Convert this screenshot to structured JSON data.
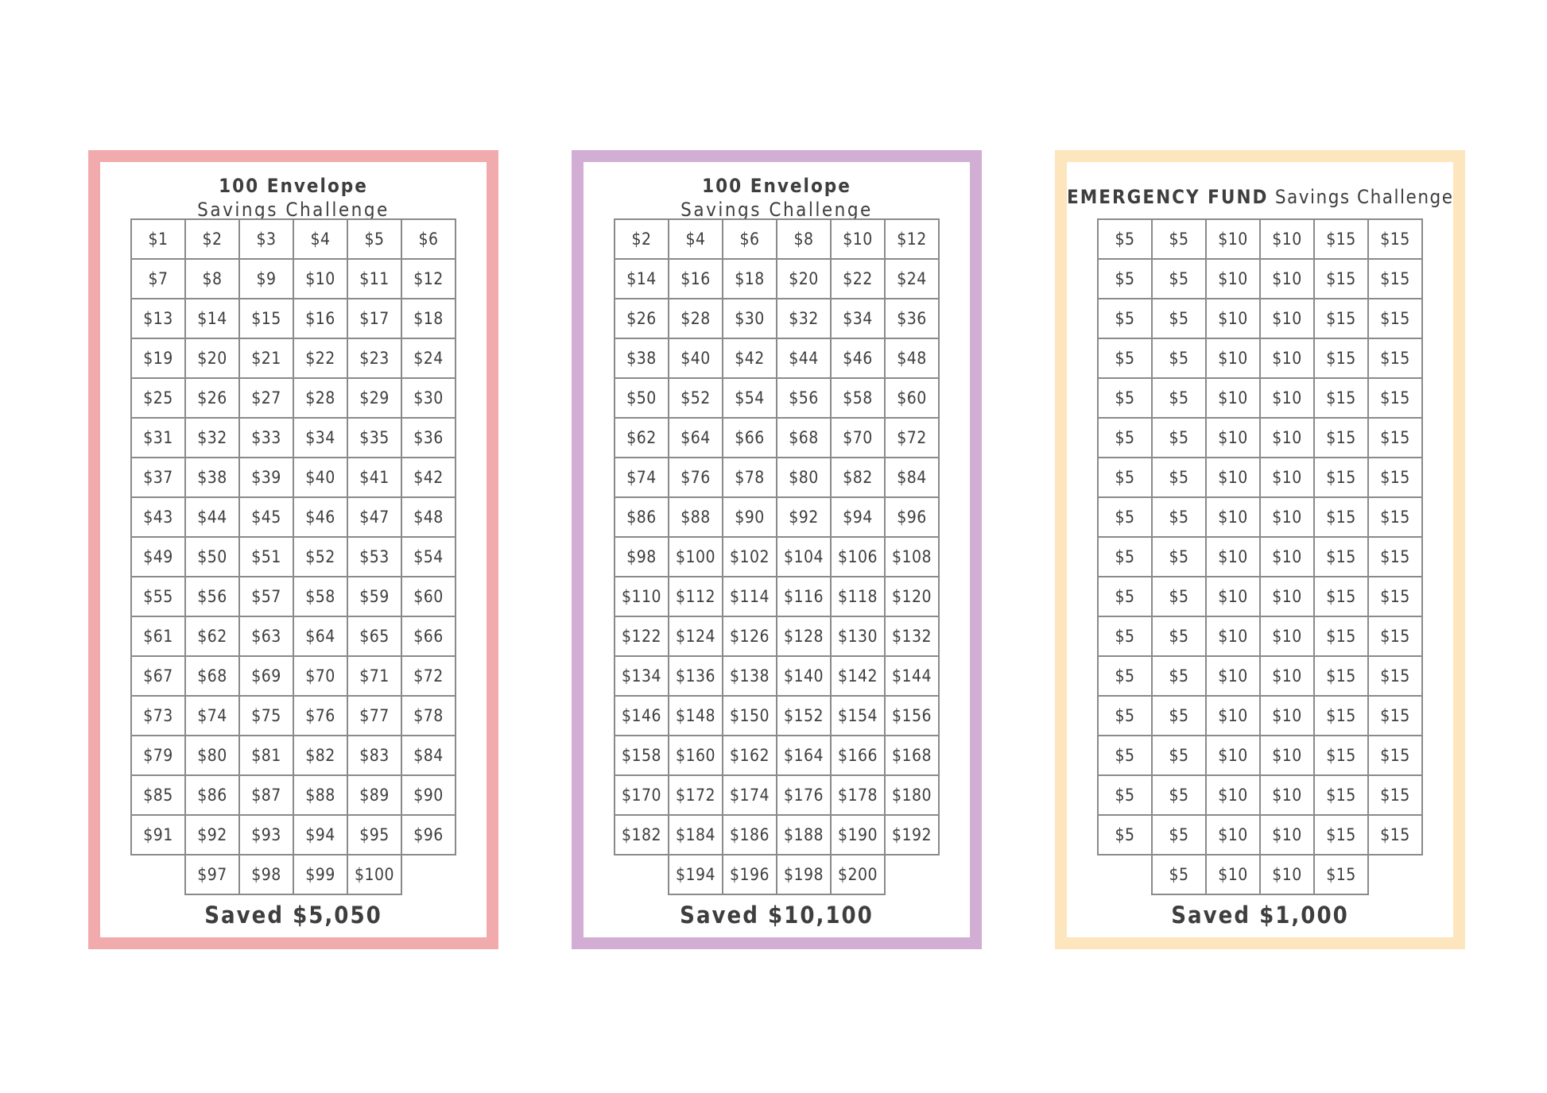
{
  "cards": [
    {
      "border_color": "#f2abac",
      "title_bold": "100 Envelope",
      "title_sub": "Savings Challenge",
      "rows": [
        [
          "$1",
          "$2",
          "$3",
          "$4",
          "$5",
          "$6"
        ],
        [
          "$7",
          "$8",
          "$9",
          "$10",
          "$11",
          "$12"
        ],
        [
          "$13",
          "$14",
          "$15",
          "$16",
          "$17",
          "$18"
        ],
        [
          "$19",
          "$20",
          "$21",
          "$22",
          "$23",
          "$24"
        ],
        [
          "$25",
          "$26",
          "$27",
          "$28",
          "$29",
          "$30"
        ],
        [
          "$31",
          "$32",
          "$33",
          "$34",
          "$35",
          "$36"
        ],
        [
          "$37",
          "$38",
          "$39",
          "$40",
          "$41",
          "$42"
        ],
        [
          "$43",
          "$44",
          "$45",
          "$46",
          "$47",
          "$48"
        ],
        [
          "$49",
          "$50",
          "$51",
          "$52",
          "$53",
          "$54"
        ],
        [
          "$55",
          "$56",
          "$57",
          "$58",
          "$59",
          "$60"
        ],
        [
          "$61",
          "$62",
          "$63",
          "$64",
          "$65",
          "$66"
        ],
        [
          "$67",
          "$68",
          "$69",
          "$70",
          "$71",
          "$72"
        ],
        [
          "$73",
          "$74",
          "$75",
          "$76",
          "$77",
          "$78"
        ],
        [
          "$79",
          "$80",
          "$81",
          "$82",
          "$83",
          "$84"
        ],
        [
          "$85",
          "$86",
          "$87",
          "$88",
          "$89",
          "$90"
        ],
        [
          "$91",
          "$92",
          "$93",
          "$94",
          "$95",
          "$96"
        ],
        [
          "",
          "$97",
          "$98",
          "$99",
          "$100",
          ""
        ]
      ],
      "saved": "Saved $5,050"
    },
    {
      "border_color": "#d3aed4",
      "title_bold": "100 Envelope",
      "title_sub": "Savings Challenge",
      "rows": [
        [
          "$2",
          "$4",
          "$6",
          "$8",
          "$10",
          "$12"
        ],
        [
          "$14",
          "$16",
          "$18",
          "$20",
          "$22",
          "$24"
        ],
        [
          "$26",
          "$28",
          "$30",
          "$32",
          "$34",
          "$36"
        ],
        [
          "$38",
          "$40",
          "$42",
          "$44",
          "$46",
          "$48"
        ],
        [
          "$50",
          "$52",
          "$54",
          "$56",
          "$58",
          "$60"
        ],
        [
          "$62",
          "$64",
          "$66",
          "$68",
          "$70",
          "$72"
        ],
        [
          "$74",
          "$76",
          "$78",
          "$80",
          "$82",
          "$84"
        ],
        [
          "$86",
          "$88",
          "$90",
          "$92",
          "$94",
          "$96"
        ],
        [
          "$98",
          "$100",
          "$102",
          "$104",
          "$106",
          "$108"
        ],
        [
          "$110",
          "$112",
          "$114",
          "$116",
          "$118",
          "$120"
        ],
        [
          "$122",
          "$124",
          "$126",
          "$128",
          "$130",
          "$132"
        ],
        [
          "$134",
          "$136",
          "$138",
          "$140",
          "$142",
          "$144"
        ],
        [
          "$146",
          "$148",
          "$150",
          "$152",
          "$154",
          "$156"
        ],
        [
          "$158",
          "$160",
          "$162",
          "$164",
          "$166",
          "$168"
        ],
        [
          "$170",
          "$172",
          "$174",
          "$176",
          "$178",
          "$180"
        ],
        [
          "$182",
          "$184",
          "$186",
          "$188",
          "$190",
          "$192"
        ],
        [
          "",
          "$194",
          "$196",
          "$198",
          "$200",
          ""
        ]
      ],
      "saved": "Saved $10,100"
    },
    {
      "border_color": "#fde5bd",
      "title_bold": "EMERGENCY FUND",
      "title_sub": "Savings Challenge",
      "rows": [
        [
          "$5",
          "$5",
          "$10",
          "$10",
          "$15",
          "$15"
        ],
        [
          "$5",
          "$5",
          "$10",
          "$10",
          "$15",
          "$15"
        ],
        [
          "$5",
          "$5",
          "$10",
          "$10",
          "$15",
          "$15"
        ],
        [
          "$5",
          "$5",
          "$10",
          "$10",
          "$15",
          "$15"
        ],
        [
          "$5",
          "$5",
          "$10",
          "$10",
          "$15",
          "$15"
        ],
        [
          "$5",
          "$5",
          "$10",
          "$10",
          "$15",
          "$15"
        ],
        [
          "$5",
          "$5",
          "$10",
          "$10",
          "$15",
          "$15"
        ],
        [
          "$5",
          "$5",
          "$10",
          "$10",
          "$15",
          "$15"
        ],
        [
          "$5",
          "$5",
          "$10",
          "$10",
          "$15",
          "$15"
        ],
        [
          "$5",
          "$5",
          "$10",
          "$10",
          "$15",
          "$15"
        ],
        [
          "$5",
          "$5",
          "$10",
          "$10",
          "$15",
          "$15"
        ],
        [
          "$5",
          "$5",
          "$10",
          "$10",
          "$15",
          "$15"
        ],
        [
          "$5",
          "$5",
          "$10",
          "$10",
          "$15",
          "$15"
        ],
        [
          "$5",
          "$5",
          "$10",
          "$10",
          "$15",
          "$15"
        ],
        [
          "$5",
          "$5",
          "$10",
          "$10",
          "$15",
          "$15"
        ],
        [
          "$5",
          "$5",
          "$10",
          "$10",
          "$15",
          "$15"
        ],
        [
          "",
          "$5",
          "$10",
          "$10",
          "$15",
          ""
        ]
      ],
      "saved": "Saved $1,000"
    }
  ]
}
